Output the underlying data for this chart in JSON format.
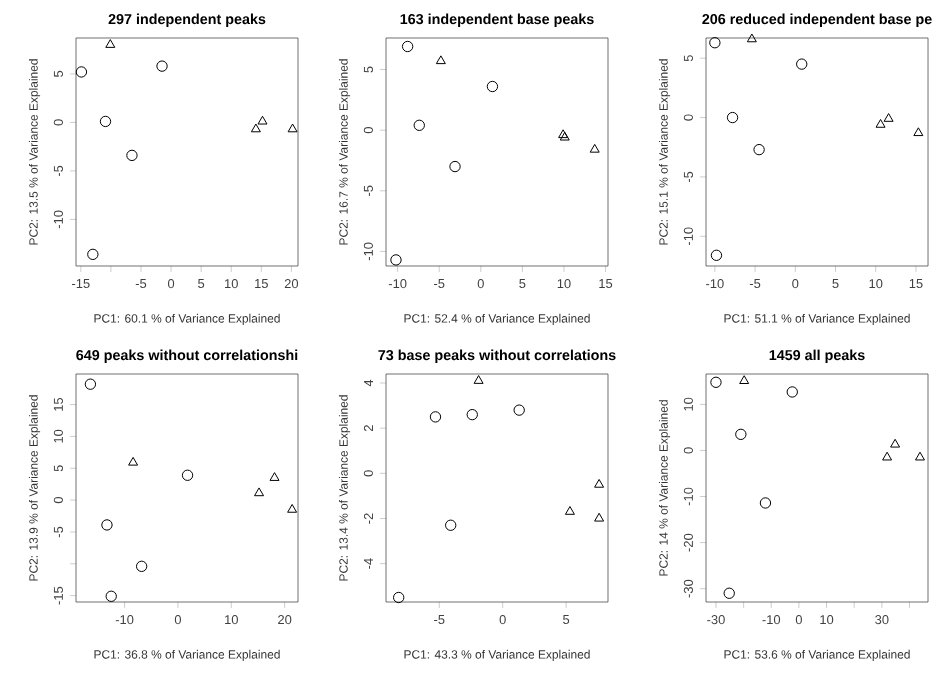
{
  "chart_data": [
    {
      "type": "scatter",
      "title": "297 independent peaks",
      "xlabel": "PC1: 60.1 % of Variance Explained",
      "ylabel": "PC2: 13.5 % of Variance Explained",
      "xlim": [
        -15.8,
        21.1
      ],
      "ylim": [
        -14.8,
        8.7
      ],
      "xticks": [
        -15,
        {
          "value": -10,
          "label": null
        },
        -5,
        0,
        5,
        10,
        15,
        20
      ],
      "yticks": [
        -10,
        -5,
        0,
        5
      ],
      "series": [
        {
          "color": "#000000",
          "marker": "circle",
          "x": [
            -14.9,
            -10.9,
            -1.5,
            -6.5,
            -13.0
          ],
          "values": [
            5.2,
            0.1,
            5.8,
            -3.4,
            -13.6
          ]
        },
        {
          "color": "#000000",
          "marker": "triangle",
          "x": [
            -10.1,
            15.2,
            14.1,
            20.2
          ],
          "values": [
            8.0,
            0.1,
            -0.7,
            -0.7
          ]
        }
      ]
    },
    {
      "type": "scatter",
      "title": "163 independent base peaks",
      "xlabel": "PC1: 52.4 % of Variance Explained",
      "ylabel": "PC2: 16.7 % of Variance Explained",
      "xlim": [
        -11.4,
        15.3
      ],
      "ylim": [
        -11.2,
        7.6
      ],
      "xticks": [
        -10,
        -5,
        0,
        5,
        10,
        15
      ],
      "yticks": [
        -10,
        -5,
        0,
        5
      ],
      "series": [
        {
          "color": "#000000",
          "marker": "circle",
          "x": [
            -8.8,
            -7.4,
            -3.1,
            1.4,
            -10.2
          ],
          "values": [
            6.9,
            0.4,
            -3.0,
            3.6,
            -10.7
          ]
        },
        {
          "color": "#000000",
          "marker": "triangle",
          "x": [
            -4.8,
            9.9,
            10.1,
            13.7
          ],
          "values": [
            5.7,
            -0.4,
            -0.6,
            -1.6
          ]
        }
      ]
    },
    {
      "type": "scatter",
      "title": "206 reduced independent base pe",
      "xlabel": "PC1: 51.1 % of Variance Explained",
      "ylabel": "PC2: 15.1 % of Variance Explained",
      "xlim": [
        -11.1,
        16.5
      ],
      "ylim": [
        -12.5,
        6.7
      ],
      "xticks": [
        -10,
        -5,
        0,
        5,
        10,
        15
      ],
      "yticks": [
        -10,
        -5,
        0,
        5
      ],
      "series": [
        {
          "color": "#000000",
          "marker": "circle",
          "x": [
            -10.0,
            -7.8,
            -4.5,
            0.8,
            -9.8
          ],
          "values": [
            6.3,
            0.0,
            -2.7,
            4.5,
            -11.6
          ]
        },
        {
          "color": "#000000",
          "marker": "triangle",
          "x": [
            -5.4,
            10.6,
            11.6,
            15.3
          ],
          "values": [
            6.6,
            -0.6,
            -0.1,
            -1.3
          ]
        }
      ]
    },
    {
      "type": "scatter",
      "title": "649 peaks without correlationshi",
      "xlabel": "PC1: 36.8 % of Variance Explained",
      "ylabel": "PC2: 13.9 % of Variance Explained",
      "xlim": [
        -19.1,
        22.5
      ],
      "ylim": [
        -16.0,
        19.8
      ],
      "xticks": [
        -10,
        0,
        10,
        20
      ],
      "yticks": [
        -15,
        {
          "value": -10,
          "label": null
        },
        -5,
        0,
        5,
        10,
        15
      ],
      "series": [
        {
          "color": "#000000",
          "marker": "circle",
          "x": [
            -16.4,
            -13.3,
            -6.8,
            -12.5,
            1.8
          ],
          "values": [
            18.2,
            -3.9,
            -10.4,
            -15.1,
            3.9
          ]
        },
        {
          "color": "#000000",
          "marker": "triangle",
          "x": [
            -8.4,
            15.2,
            18.1,
            21.4
          ],
          "values": [
            5.9,
            1.1,
            3.5,
            -1.5
          ]
        }
      ]
    },
    {
      "type": "scatter",
      "title": "73 base peaks without correlations",
      "xlabel": "PC1: 43.3 % of Variance Explained",
      "ylabel": "PC2: 13.4 % of Variance Explained",
      "xlim": [
        -9.2,
        8.3
      ],
      "ylim": [
        -5.7,
        4.4
      ],
      "xticks": [
        -5,
        0,
        5
      ],
      "yticks": [
        -4,
        -2,
        0,
        2,
        4
      ],
      "series": [
        {
          "color": "#000000",
          "marker": "circle",
          "x": [
            -5.3,
            -2.4,
            1.3,
            -4.1,
            -8.2
          ],
          "values": [
            2.5,
            2.6,
            2.8,
            -2.3,
            -5.5
          ]
        },
        {
          "color": "#000000",
          "marker": "triangle",
          "x": [
            -1.9,
            5.3,
            7.6,
            7.6
          ],
          "values": [
            4.1,
            -1.7,
            -0.5,
            -2.0
          ]
        }
      ]
    },
    {
      "type": "scatter",
      "title": "1459 all peaks",
      "xlabel": "PC1: 53.6 % of Variance Explained",
      "ylabel": "PC2: 14 % of Variance Explained",
      "xlim": [
        -33.6,
        46.7
      ],
      "ylim": [
        -32.9,
        16.6
      ],
      "xticks": [
        -30,
        {
          "value": -20,
          "label": null
        },
        -10,
        0,
        10,
        {
          "value": 20,
          "label": null
        },
        30,
        {
          "value": 40,
          "label": null
        }
      ],
      "yticks": [
        -30,
        -20,
        -10,
        0,
        10
      ],
      "series": [
        {
          "color": "#000000",
          "marker": "circle",
          "x": [
            -30.0,
            -21.0,
            -12.1,
            -2.4,
            -25.2
          ],
          "values": [
            14.8,
            3.5,
            -11.4,
            12.7,
            -31.0
          ]
        },
        {
          "color": "#000000",
          "marker": "triangle",
          "x": [
            -19.8,
            31.9,
            34.8,
            43.8
          ],
          "values": [
            15.1,
            -1.5,
            1.3,
            -1.5
          ]
        }
      ]
    }
  ]
}
